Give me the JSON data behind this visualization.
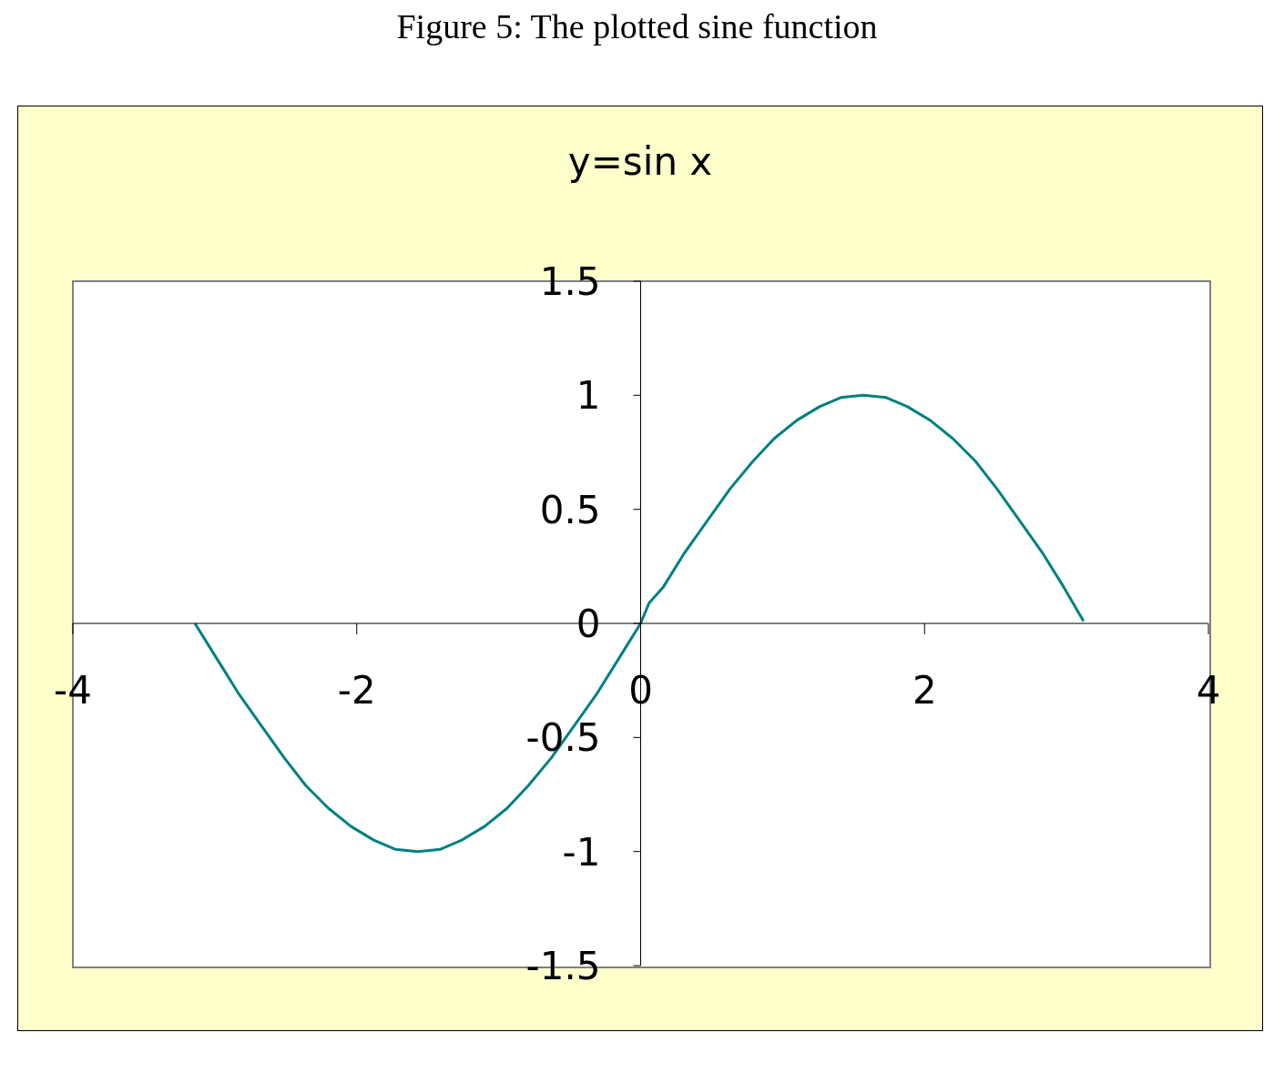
{
  "chart_data": {
    "type": "line",
    "title": "Figure 5: The plotted sine function",
    "subtitle": "y=sin x",
    "x": [
      -3.14,
      -2.98,
      -2.83,
      -2.67,
      -2.51,
      -2.36,
      -2.2,
      -2.04,
      -1.88,
      -1.73,
      -1.57,
      -1.41,
      -1.26,
      -1.1,
      -0.94,
      -0.79,
      -0.63,
      -0.47,
      -0.31,
      -0.16,
      0,
      0.06,
      0.16,
      0.31,
      0.47,
      0.63,
      0.79,
      0.94,
      1.1,
      1.26,
      1.41,
      1.57,
      1.73,
      1.88,
      2.04,
      2.2,
      2.36,
      2.51,
      2.67,
      2.83,
      2.98,
      3.12
    ],
    "series": [
      {
        "color": "#008080",
        "values": [
          0,
          -0.16,
          -0.31,
          -0.45,
          -0.59,
          -0.71,
          -0.81,
          -0.89,
          -0.95,
          -0.99,
          -1,
          -0.99,
          -0.95,
          -0.89,
          -0.81,
          -0.71,
          -0.59,
          -0.45,
          -0.31,
          -0.16,
          0,
          0.09,
          0.16,
          0.31,
          0.45,
          0.59,
          0.71,
          0.81,
          0.89,
          0.95,
          0.99,
          1,
          0.99,
          0.95,
          0.89,
          0.81,
          0.71,
          0.59,
          0.45,
          0.31,
          0.16,
          0.01
        ]
      }
    ],
    "xlim": [
      -4,
      4
    ],
    "xticks": [
      -4,
      -2,
      0,
      2,
      4
    ],
    "ylim": [
      -1.5,
      1.5
    ],
    "yticks": [
      -1.5,
      -1,
      -0.5,
      0,
      0.5,
      1,
      1.5
    ],
    "grid": false,
    "legend": false,
    "marker": "none",
    "line_style": "solid"
  }
}
